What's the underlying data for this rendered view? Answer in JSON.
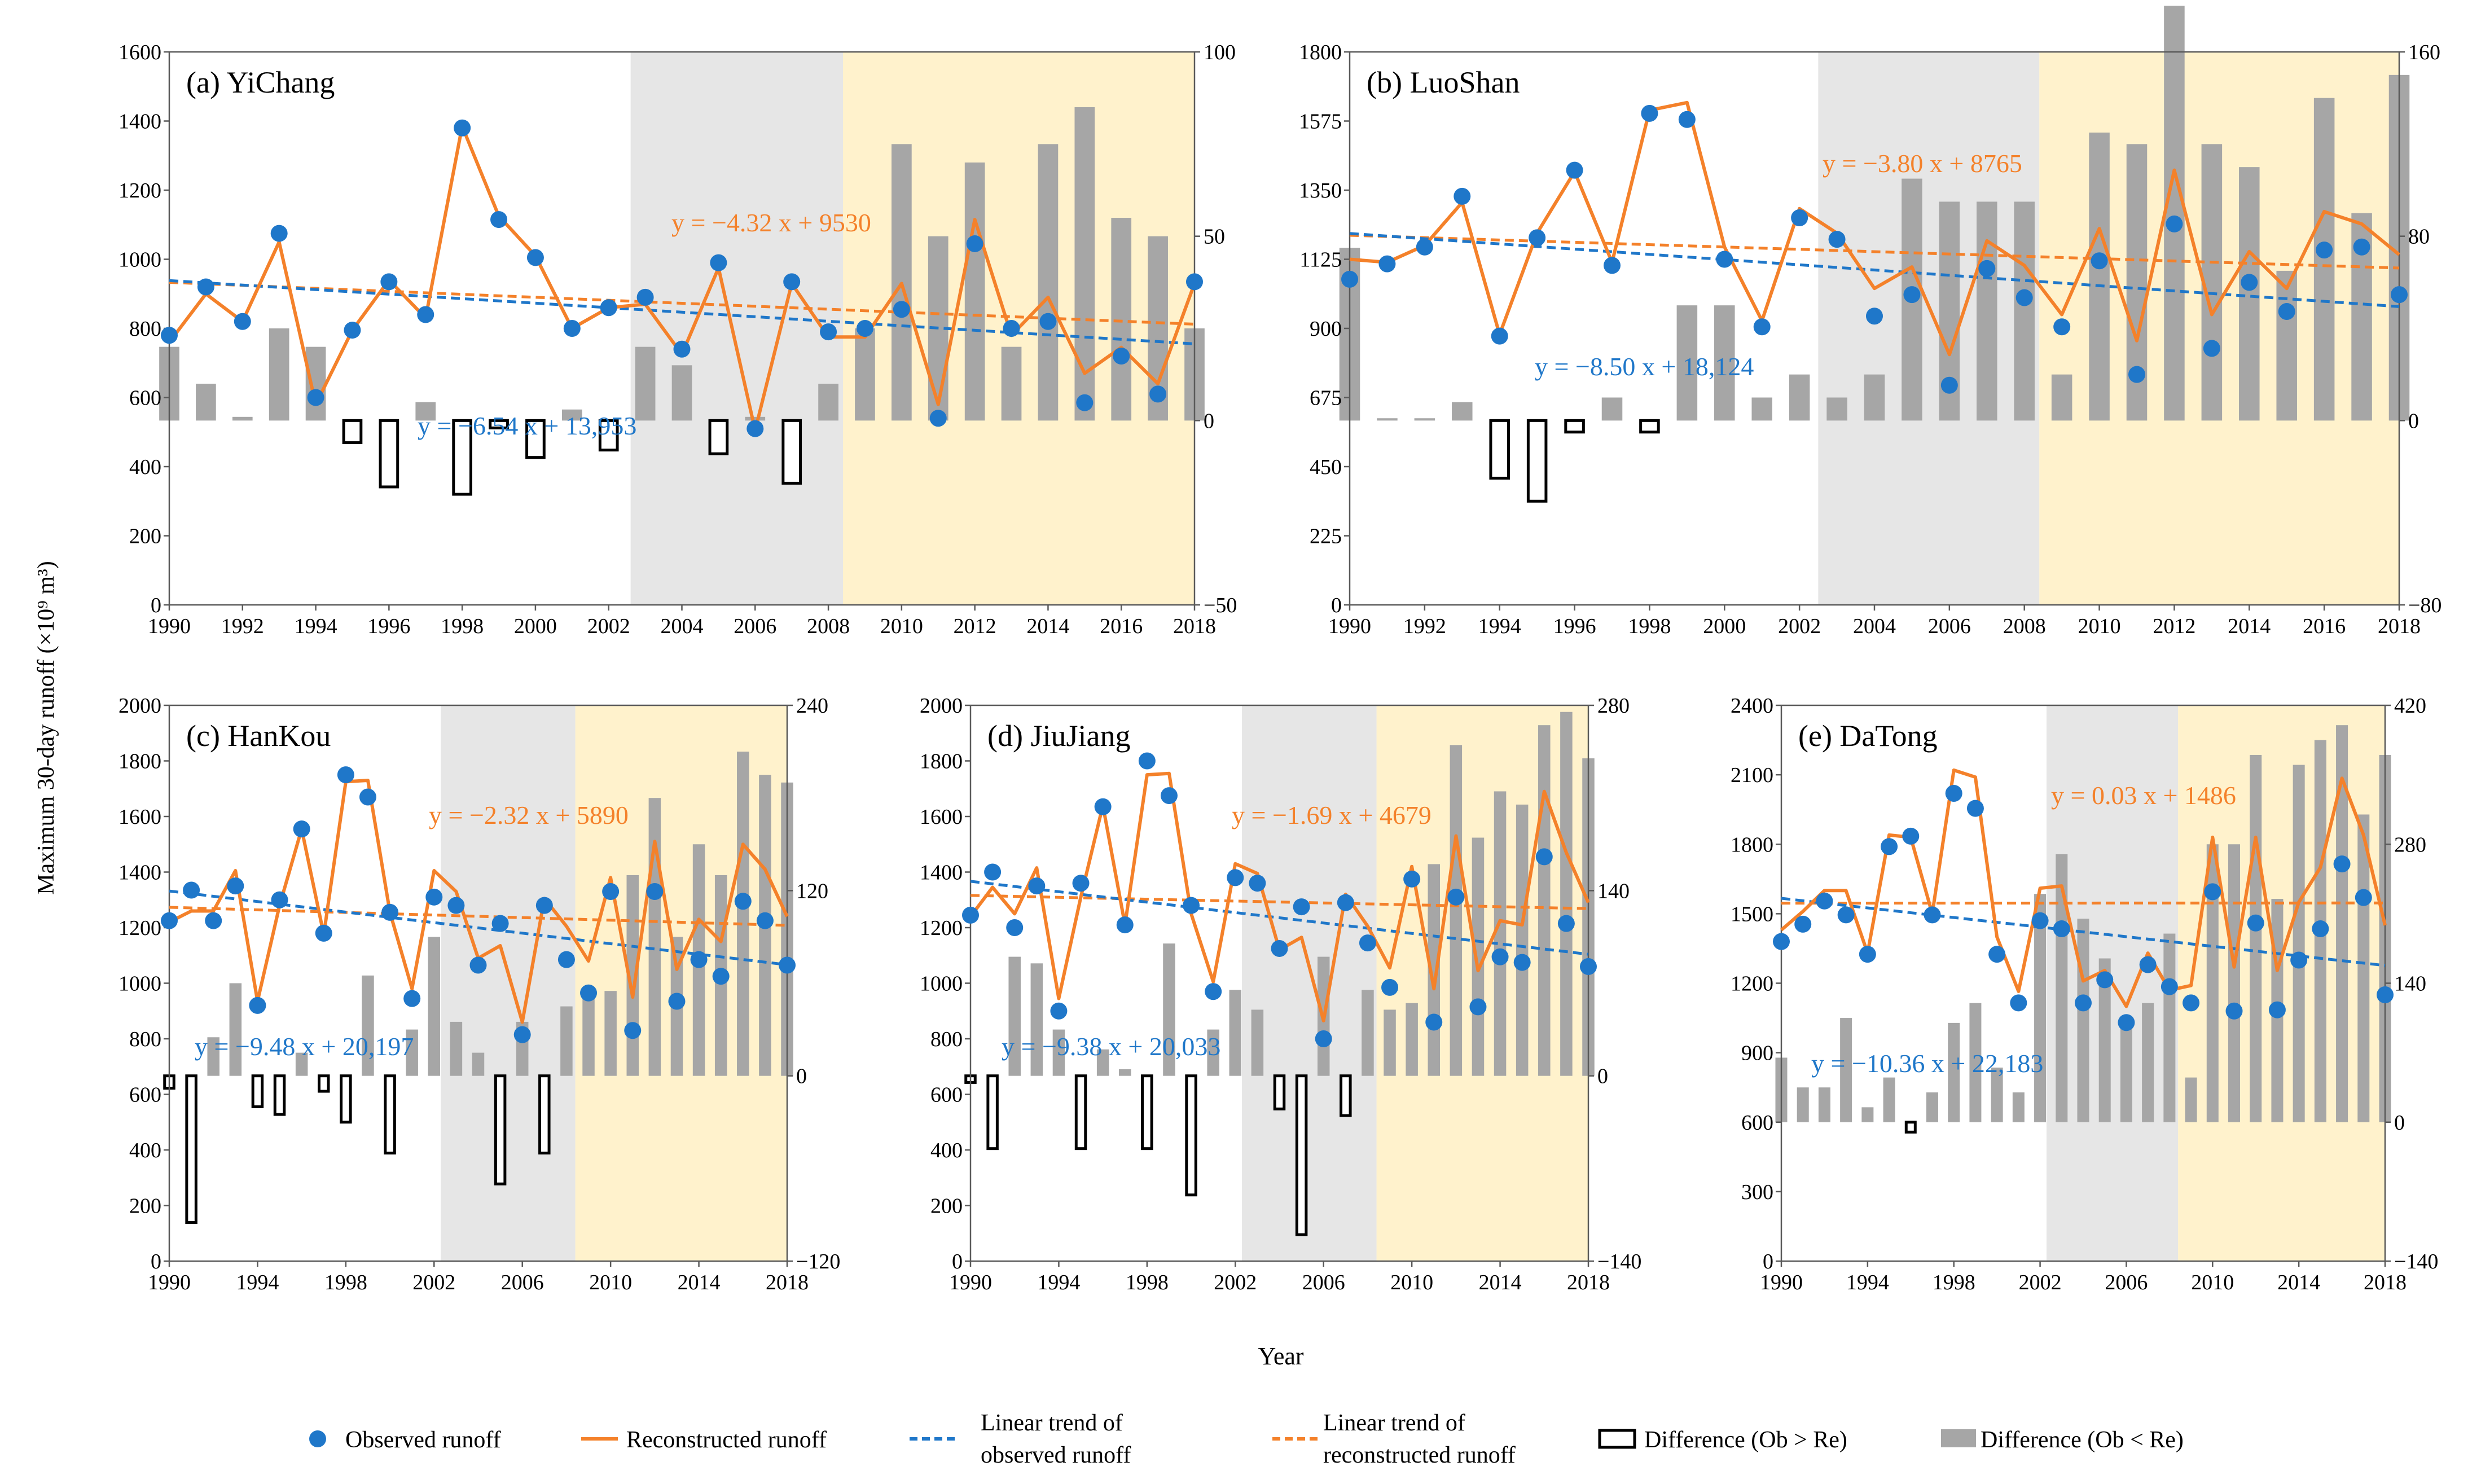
{
  "figure": {
    "ylabel": "Maximum 30-day runoff (×10⁹ m³)",
    "xlabel": "Year",
    "legend": [
      {
        "key": "observed",
        "label_lines": [
          "Observed runoff"
        ]
      },
      {
        "key": "reconstructed",
        "label_lines": [
          "Reconstructed runoff"
        ]
      },
      {
        "key": "trend_obs",
        "label_lines": [
          "Linear trend of",
          "observed runoff"
        ]
      },
      {
        "key": "trend_rec",
        "label_lines": [
          "Linear trend of",
          "reconstructed runoff"
        ]
      },
      {
        "key": "diff_pos",
        "label_lines": [
          "Difference (Ob > Re)"
        ]
      },
      {
        "key": "diff_neg",
        "label_lines": [
          "Difference (Ob < Re)"
        ]
      }
    ]
  },
  "colors": {
    "observed": "#1f77c9",
    "reconstructed": "#f4812a",
    "gray_band": "#e6e6e6",
    "yellow_band": "#fff2cc",
    "diff_bar": "#a6a6a6",
    "axis": "#595959"
  },
  "chart_data": [
    {
      "type": "line",
      "title": "(a) YiChang",
      "years": [
        1990,
        1991,
        1992,
        1993,
        1994,
        1995,
        1996,
        1997,
        1998,
        1999,
        2000,
        2001,
        2002,
        2003,
        2004,
        2005,
        2006,
        2007,
        2008,
        2009,
        2010,
        2011,
        2012,
        2013,
        2014,
        2015,
        2016,
        2017,
        2018
      ],
      "observed": [
        780,
        920,
        820,
        1075,
        600,
        795,
        935,
        840,
        1380,
        1115,
        1005,
        800,
        860,
        890,
        740,
        990,
        510,
        935,
        790,
        800,
        855,
        540,
        1045,
        800,
        820,
        585,
        720,
        610,
        935
      ],
      "reconstructed": [
        760,
        900,
        820,
        1050,
        580,
        795,
        940,
        830,
        1385,
        1125,
        1010,
        800,
        860,
        870,
        725,
        975,
        505,
        930,
        775,
        775,
        930,
        580,
        1115,
        780,
        890,
        670,
        745,
        640,
        930
      ],
      "difference": [
        20,
        10,
        1,
        25,
        20,
        -6,
        -18,
        5,
        -20,
        -2,
        -10,
        3,
        -8,
        20,
        15,
        -9,
        1,
        -17,
        10,
        25,
        75,
        50,
        70,
        20,
        75,
        85,
        55,
        50,
        25
      ],
      "ylim": [
        0,
        1600
      ],
      "yticks": [
        0,
        200,
        400,
        600,
        800,
        1000,
        1200,
        1400,
        1600
      ],
      "ytick_labels": [
        "0",
        "200",
        "400",
        "600",
        "800",
        "1000",
        "1200",
        "1400",
        "1600"
      ],
      "diff_ylim": [
        -50,
        100
      ],
      "diff_ticks": [
        -50,
        0,
        50,
        100
      ],
      "diff_tick_labels": [
        "−50",
        "0",
        "50",
        "100"
      ],
      "xticks": [
        1990,
        1992,
        1994,
        1996,
        1998,
        2000,
        2002,
        2004,
        2006,
        2008,
        2010,
        2012,
        2014,
        2016,
        2018
      ],
      "gray_band": [
        2002.6,
        2008.4
      ],
      "yellow_band": [
        2008.4,
        2018
      ],
      "trend_obs": {
        "slope": -6.54,
        "intercept": 13953,
        "label": "y = −6.54 x + 13,953"
      },
      "trend_rec": {
        "slope": -4.32,
        "intercept": 9530,
        "label": "y = −4.32 x + 9530"
      }
    },
    {
      "type": "line",
      "title": "(b) LuoShan",
      "years": [
        1990,
        1991,
        1992,
        1993,
        1994,
        1995,
        1996,
        1997,
        1998,
        1999,
        2000,
        2001,
        2002,
        2003,
        2004,
        2005,
        2006,
        2007,
        2008,
        2009,
        2010,
        2011,
        2012,
        2013,
        2014,
        2015,
        2016,
        2017,
        2018
      ],
      "observed": [
        1060,
        1110,
        1165,
        1330,
        875,
        1195,
        1415,
        1105,
        1600,
        1580,
        1125,
        905,
        1260,
        1190,
        940,
        1010,
        715,
        1095,
        1000,
        905,
        1120,
        750,
        1240,
        835,
        1050,
        955,
        1155,
        1165,
        1010
      ],
      "reconstructed": [
        1125,
        1115,
        1170,
        1310,
        880,
        1210,
        1410,
        1115,
        1610,
        1635,
        1165,
        925,
        1290,
        1210,
        1030,
        1100,
        815,
        1185,
        1105,
        945,
        1225,
        860,
        1415,
        945,
        1150,
        1030,
        1280,
        1240,
        1140
      ],
      "difference": [
        75,
        1,
        1,
        8,
        -25,
        -35,
        -5,
        10,
        -5,
        50,
        50,
        10,
        20,
        10,
        20,
        105,
        95,
        95,
        95,
        20,
        125,
        120,
        180,
        120,
        110,
        65,
        140,
        90,
        150
      ],
      "ylim": [
        0,
        1800
      ],
      "yticks": [
        0,
        225,
        450,
        675,
        900,
        1125,
        1350,
        1575,
        1800
      ],
      "ytick_labels": [
        "0",
        "225",
        "450",
        "675",
        "900",
        "1125",
        "1350",
        "1575",
        "1800"
      ],
      "diff_ylim": [
        -80,
        160
      ],
      "diff_ticks": [
        -80,
        0,
        80,
        160
      ],
      "diff_tick_labels": [
        "−80",
        "0",
        "80",
        "160"
      ],
      "xticks": [
        1990,
        1992,
        1994,
        1996,
        1998,
        2000,
        2002,
        2004,
        2006,
        2008,
        2010,
        2012,
        2014,
        2016,
        2018
      ],
      "gray_band": [
        2002.5,
        2008.4
      ],
      "yellow_band": [
        2008.4,
        2018
      ],
      "trend_obs": {
        "slope": -8.5,
        "intercept": 18124,
        "label": "y = −8.50 x + 18,124"
      },
      "trend_rec": {
        "slope": -3.8,
        "intercept": 8765,
        "label": "y = −3.80 x + 8765"
      }
    },
    {
      "type": "line",
      "title": "(c) HanKou",
      "years": [
        1990,
        1991,
        1992,
        1993,
        1994,
        1995,
        1996,
        1997,
        1998,
        1999,
        2000,
        2001,
        2002,
        2003,
        2004,
        2005,
        2006,
        2007,
        2008,
        2009,
        2010,
        2011,
        2012,
        2013,
        2014,
        2015,
        2016,
        2017,
        2018
      ],
      "observed": [
        1225,
        1335,
        1225,
        1350,
        920,
        1300,
        1555,
        1180,
        1750,
        1670,
        1255,
        945,
        1310,
        1280,
        1065,
        1215,
        815,
        1280,
        1085,
        965,
        1330,
        830,
        1330,
        935,
        1085,
        1025,
        1295,
        1225,
        1065
      ],
      "reconstructed": [
        1220,
        1260,
        1260,
        1405,
        935,
        1280,
        1555,
        1175,
        1725,
        1730,
        1255,
        980,
        1405,
        1330,
        1090,
        1135,
        860,
        1305,
        1205,
        1080,
        1380,
        950,
        1510,
        1050,
        1230,
        1150,
        1500,
        1410,
        1240
      ],
      "difference": [
        -8,
        -95,
        25,
        60,
        -20,
        -25,
        15,
        -10,
        -30,
        65,
        -50,
        30,
        90,
        35,
        15,
        -70,
        35,
        -50,
        45,
        50,
        55,
        130,
        180,
        90,
        150,
        130,
        210,
        195,
        190
      ],
      "ylim": [
        0,
        2000
      ],
      "yticks": [
        0,
        200,
        400,
        600,
        800,
        1000,
        1200,
        1400,
        1600,
        1800,
        2000
      ],
      "ytick_labels": [
        "0",
        "200",
        "400",
        "600",
        "800",
        "1000",
        "1200",
        "1400",
        "1600",
        "1800",
        "2000"
      ],
      "diff_ylim": [
        -120,
        240
      ],
      "diff_ticks": [
        -120,
        0,
        120,
        240
      ],
      "diff_tick_labels": [
        "−120",
        "0",
        "120",
        "240"
      ],
      "xticks": [
        1990,
        1994,
        1998,
        2002,
        2006,
        2010,
        2014,
        2018
      ],
      "gray_band": [
        2002.3,
        2008.4
      ],
      "yellow_band": [
        2008.4,
        2018
      ],
      "trend_obs": {
        "slope": -9.48,
        "intercept": 20197,
        "label": "y = −9.48 x + 20,197"
      },
      "trend_rec": {
        "slope": -2.32,
        "intercept": 5890,
        "label": "y = −2.32 x + 5890"
      }
    },
    {
      "type": "line",
      "title": "(d) JiuJiang",
      "years": [
        1990,
        1991,
        1992,
        1993,
        1994,
        1995,
        1996,
        1997,
        1998,
        1999,
        2000,
        2001,
        2002,
        2003,
        2004,
        2005,
        2006,
        2007,
        2008,
        2009,
        2010,
        2011,
        2012,
        2013,
        2014,
        2015,
        2016,
        2017,
        2018
      ],
      "observed": [
        1245,
        1400,
        1200,
        1350,
        900,
        1360,
        1635,
        1210,
        1800,
        1675,
        1280,
        970,
        1380,
        1360,
        1125,
        1275,
        800,
        1290,
        1145,
        985,
        1375,
        860,
        1310,
        915,
        1095,
        1075,
        1455,
        1215,
        1060
      ],
      "reconstructed": [
        1240,
        1345,
        1250,
        1415,
        945,
        1310,
        1640,
        1210,
        1750,
        1755,
        1250,
        1005,
        1430,
        1395,
        1120,
        1165,
        865,
        1320,
        1205,
        1055,
        1420,
        980,
        1530,
        1045,
        1225,
        1210,
        1690,
        1470,
        1290
      ],
      "difference": [
        -5,
        -55,
        90,
        85,
        35,
        -55,
        20,
        5,
        -55,
        100,
        -90,
        35,
        65,
        50,
        -25,
        -120,
        90,
        -30,
        65,
        50,
        55,
        160,
        250,
        180,
        215,
        205,
        265,
        275,
        240
      ],
      "ylim": [
        0,
        2000
      ],
      "yticks": [
        0,
        200,
        400,
        600,
        800,
        1000,
        1200,
        1400,
        1600,
        1800,
        2000
      ],
      "ytick_labels": [
        "0",
        "200",
        "400",
        "600",
        "800",
        "1000",
        "1200",
        "1400",
        "1600",
        "1800",
        "2000"
      ],
      "diff_ylim": [
        -140,
        280
      ],
      "diff_ticks": [
        -140,
        0,
        140,
        280
      ],
      "diff_tick_labels": [
        "−140",
        "0",
        "140",
        "280"
      ],
      "xticks": [
        1990,
        1994,
        1998,
        2002,
        2006,
        2010,
        2014,
        2018
      ],
      "gray_band": [
        2002.3,
        2008.4
      ],
      "yellow_band": [
        2008.4,
        2018
      ],
      "trend_obs": {
        "slope": -9.38,
        "intercept": 20033,
        "label": "y = −9.38 x + 20,033"
      },
      "trend_rec": {
        "slope": -1.69,
        "intercept": 4679,
        "label": "y = −1.69 x + 4679"
      }
    },
    {
      "type": "line",
      "title": "(e) DaTong",
      "years": [
        1990,
        1991,
        1992,
        1993,
        1994,
        1995,
        1996,
        1997,
        1998,
        1999,
        2000,
        2001,
        2002,
        2003,
        2004,
        2005,
        2006,
        2007,
        2008,
        2009,
        2010,
        2011,
        2012,
        2013,
        2014,
        2015,
        2016,
        2017,
        2018
      ],
      "observed": [
        1380,
        1455,
        1555,
        1495,
        1325,
        1790,
        1835,
        1495,
        2020,
        1955,
        1325,
        1115,
        1470,
        1435,
        1115,
        1215,
        1030,
        1280,
        1185,
        1115,
        1595,
        1080,
        1460,
        1085,
        1300,
        1435,
        1715,
        1570,
        1150
      ],
      "reconstructed": [
        1430,
        1510,
        1600,
        1600,
        1330,
        1840,
        1830,
        1500,
        2120,
        2090,
        1400,
        1165,
        1610,
        1620,
        1210,
        1255,
        1100,
        1330,
        1170,
        1190,
        1830,
        1270,
        1830,
        1255,
        1550,
        1700,
        2085,
        1840,
        1450
      ],
      "difference": [
        65,
        35,
        35,
        105,
        15,
        45,
        -10,
        30,
        100,
        120,
        55,
        30,
        230,
        270,
        205,
        165,
        95,
        120,
        190,
        45,
        280,
        280,
        370,
        225,
        360,
        385,
        400,
        310,
        370
      ],
      "ylim": [
        0,
        2400
      ],
      "yticks": [
        0,
        300,
        600,
        900,
        1200,
        1500,
        1800,
        2100,
        2400
      ],
      "ytick_labels": [
        "0",
        "300",
        "600",
        "900",
        "1200",
        "1500",
        "1800",
        "2100",
        "2400"
      ],
      "diff_ylim": [
        -140,
        420
      ],
      "diff_ticks": [
        -140,
        0,
        140,
        280,
        420
      ],
      "diff_tick_labels": [
        "−140",
        "0",
        "140",
        "280",
        "420"
      ],
      "xticks": [
        1990,
        1994,
        1998,
        2002,
        2006,
        2010,
        2014,
        2018
      ],
      "gray_band": [
        2002.3,
        2008.4
      ],
      "yellow_band": [
        2008.4,
        2018
      ],
      "trend_obs": {
        "slope": -10.36,
        "intercept": 22183,
        "label": "y = −10.36 x + 22,183"
      },
      "trend_rec": {
        "slope": 0.03,
        "intercept": 1486,
        "label": "y = 0.03 x + 1486"
      }
    }
  ]
}
